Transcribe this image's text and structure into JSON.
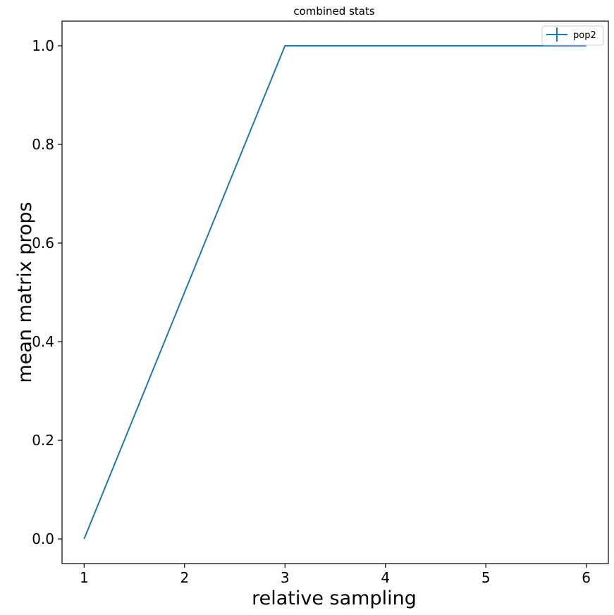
{
  "chart_data": {
    "type": "line",
    "title": "combined stats",
    "xlabel": "relative sampling",
    "ylabel": "mean matrix props",
    "xlim": [
      0.78,
      6.22
    ],
    "ylim": [
      -0.05,
      1.05
    ],
    "xticks": [
      1,
      2,
      3,
      4,
      5,
      6
    ],
    "yticks": [
      0.0,
      0.2,
      0.4,
      0.6,
      0.8,
      1.0
    ],
    "ytick_labels": [
      "0.0",
      "0.2",
      "0.4",
      "0.6",
      "0.8",
      "1.0"
    ],
    "grid": false,
    "legend_position": "top-right",
    "series": [
      {
        "name": "pop2",
        "color": "#1f77b4",
        "x": [
          1,
          2,
          3,
          4,
          5,
          6
        ],
        "y": [
          0.0,
          0.5,
          1.0,
          1.0,
          1.0,
          1.0
        ]
      }
    ]
  }
}
